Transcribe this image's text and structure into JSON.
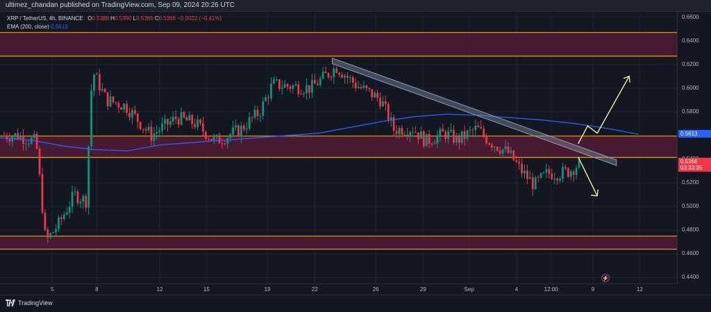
{
  "header": {
    "publisher_line": "ultimez_chandan published on TradingView.com, Sep 09, 2024 20:26 UTC"
  },
  "legend": {
    "symbol": "XRP / TetherUS, 4h, BINANCE",
    "open_label": "O",
    "open": "0.5388",
    "high_label": "H",
    "high": "0.5390",
    "low_label": "L",
    "low": "0.5365",
    "close_label": "C",
    "close": "0.5366",
    "change": "−0.0022 (−0.41%)",
    "ema_label": "EMA (200, close)",
    "ema_value": "0.5613"
  },
  "price_axis": {
    "ticks": [
      "0.6600",
      "0.6400",
      "0.6200",
      "0.6000",
      "0.5800",
      "0.5400",
      "0.5200",
      "0.5000",
      "0.4800",
      "0.4600",
      "0.4400"
    ],
    "ema_tag": "0.5613",
    "price_tag": "0.5366",
    "countdown": "03:33:35"
  },
  "time_axis": {
    "ticks": [
      "5",
      "8",
      "12",
      "15",
      "19",
      "22",
      "26",
      "29",
      "Sep",
      "4",
      "12:00",
      "9",
      "12"
    ]
  },
  "footer": {
    "brand": "TradingView"
  },
  "colors": {
    "background": "#131722",
    "up_candle": "#089981",
    "down_candle": "#f23645",
    "ema_line": "#2962ff",
    "zone_fill": "#5b1b3a",
    "zone_border": "#f0a500",
    "trendline": "#8a9bb0",
    "arrow": "#f5f0a0"
  },
  "chart_data": {
    "type": "candlestick",
    "symbol": "XRP / TetherUS",
    "interval": "4h",
    "ylim": [
      0.435,
      0.665
    ],
    "x_tick_labels": [
      "5",
      "8",
      "12",
      "15",
      "19",
      "22",
      "26",
      "29",
      "Sep",
      "4",
      "12:00",
      "9",
      "12"
    ],
    "resistance_zones": [
      [
        0.627,
        0.647
      ],
      [
        0.5415,
        0.5595
      ],
      [
        0.464,
        0.475
      ]
    ],
    "ema200": [
      0.558,
      0.556,
      0.551,
      0.548,
      0.547,
      0.552,
      0.554,
      0.556,
      0.558,
      0.56,
      0.562,
      0.567,
      0.572,
      0.576,
      0.578,
      0.577,
      0.575,
      0.573,
      0.57,
      0.566,
      0.561
    ],
    "trendline": {
      "start": 0.623,
      "end": 0.537
    },
    "projection": {
      "bullish": [
        0.553,
        0.568,
        0.562,
        0.61
      ],
      "bearish": [
        0.542,
        0.509
      ]
    },
    "candles": {
      "seed": 7,
      "anchors": [
        [
          0,
          0.56
        ],
        [
          0.02,
          0.56
        ],
        [
          0.05,
          0.555
        ],
        [
          0.065,
          0.47
        ],
        [
          0.085,
          0.485
        ],
        [
          0.11,
          0.51
        ],
        [
          0.128,
          0.505
        ],
        [
          0.138,
          0.615
        ],
        [
          0.16,
          0.59
        ],
        [
          0.19,
          0.585
        ],
        [
          0.23,
          0.56
        ],
        [
          0.27,
          0.575
        ],
        [
          0.3,
          0.57
        ],
        [
          0.33,
          0.555
        ],
        [
          0.37,
          0.565
        ],
        [
          0.4,
          0.58
        ],
        [
          0.42,
          0.603
        ],
        [
          0.48,
          0.6
        ],
        [
          0.52,
          0.618
        ],
        [
          0.55,
          0.603
        ],
        [
          0.59,
          0.59
        ],
        [
          0.61,
          0.565
        ],
        [
          0.64,
          0.566
        ],
        [
          0.66,
          0.555
        ],
        [
          0.69,
          0.562
        ],
        [
          0.71,
          0.556
        ],
        [
          0.74,
          0.566
        ],
        [
          0.76,
          0.555
        ],
        [
          0.79,
          0.545
        ],
        [
          0.81,
          0.53
        ],
        [
          0.83,
          0.518
        ],
        [
          0.85,
          0.528
        ],
        [
          0.87,
          0.528
        ],
        [
          0.885,
          0.53
        ],
        [
          0.9,
          0.536
        ]
      ]
    }
  }
}
